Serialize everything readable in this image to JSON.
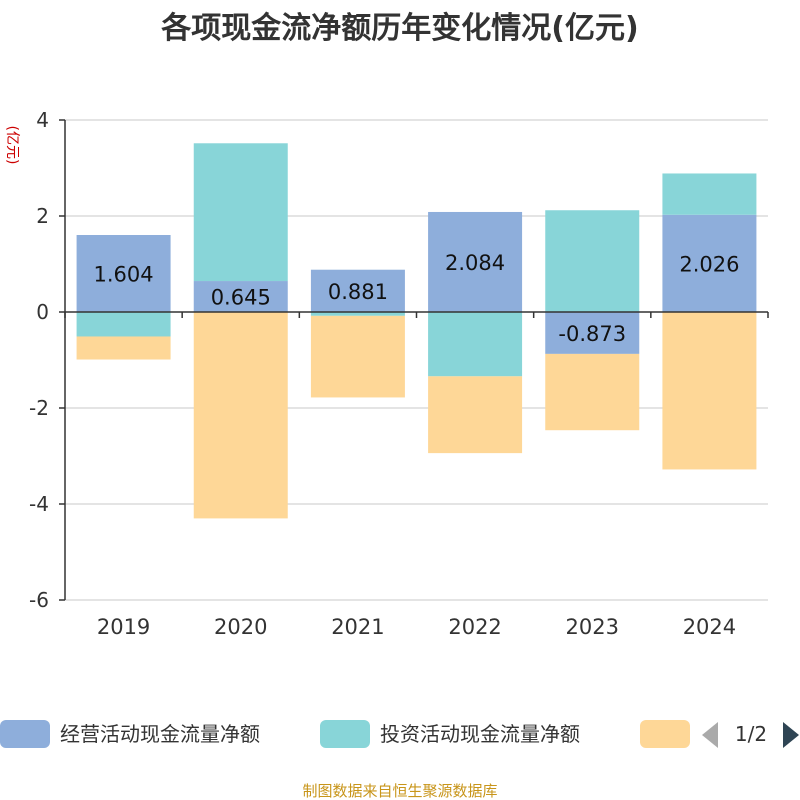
{
  "chart_data": {
    "type": "bar",
    "stacked": true,
    "title": "各项现金流净额历年变化情况(亿元)",
    "unit_label": "(亿元)",
    "categories": [
      "2019",
      "2020",
      "2021",
      "2022",
      "2023",
      "2024"
    ],
    "ylim": [
      -6,
      4
    ],
    "yticks": [
      -6,
      -4,
      -2,
      0,
      2,
      4
    ],
    "grid": true,
    "series": [
      {
        "name": "经营活动现金流量净额",
        "color": "#8eaedb",
        "values": [
          1.604,
          0.645,
          0.881,
          2.084,
          -0.873,
          2.026
        ],
        "show_labels": true
      },
      {
        "name": "投资活动现金流量净额",
        "color": "#88d5d8",
        "values": [
          -0.51,
          2.87,
          -0.08,
          -1.34,
          2.12,
          0.86
        ],
        "show_labels": false
      },
      {
        "name": "",
        "color": "#fed797",
        "values": [
          -0.48,
          -4.3,
          -1.7,
          -1.6,
          -1.59,
          -3.28
        ],
        "show_labels": false
      }
    ],
    "legend": {
      "position": "bottom",
      "page": "1/2"
    },
    "source": "制图数据来自恒生聚源数据库"
  }
}
